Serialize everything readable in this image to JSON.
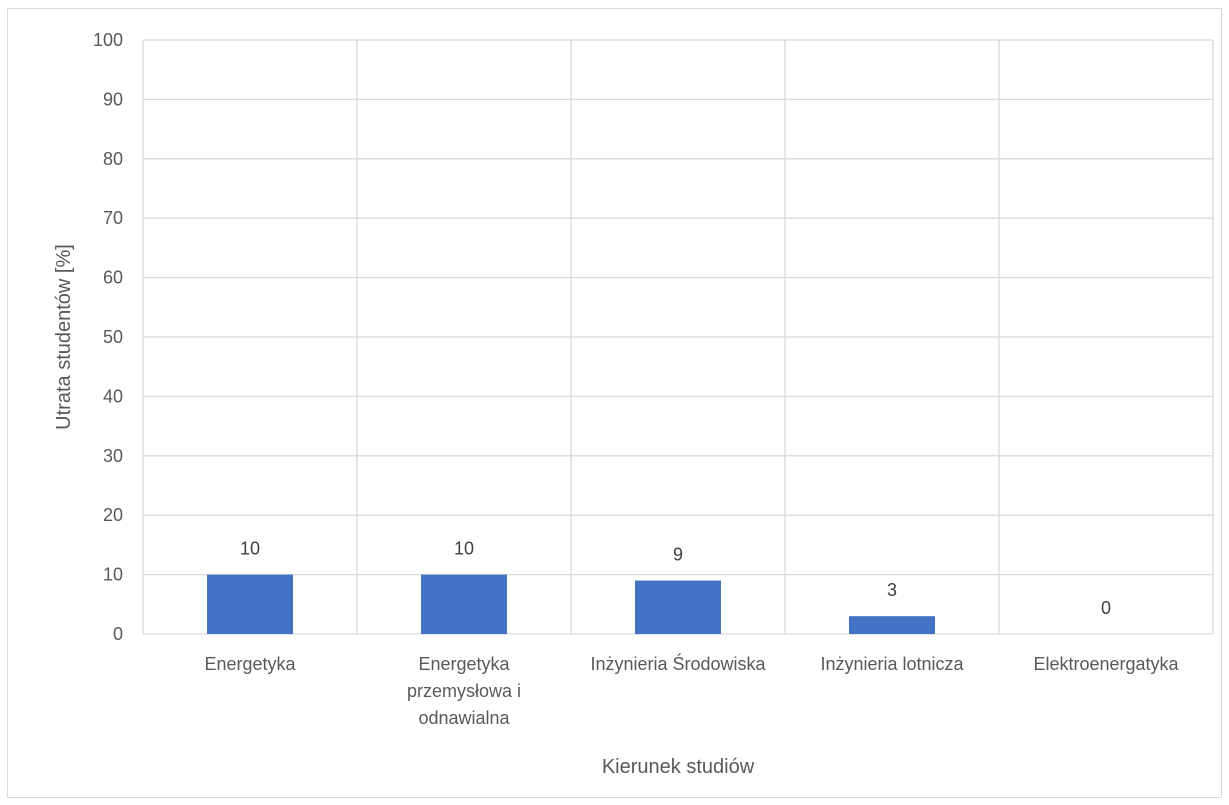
{
  "chart_data": {
    "type": "bar",
    "categories": [
      [
        "Energetyka"
      ],
      [
        "Energetyka",
        "przemysłowa i",
        "odnawialna"
      ],
      [
        "Inżynieria Środowiska"
      ],
      [
        "Inżynieria lotnicza"
      ],
      [
        "Elektroenergatyka"
      ]
    ],
    "values": [
      10,
      10,
      9,
      3,
      0
    ],
    "data_labels": [
      "10",
      "10",
      "9",
      "3",
      "0"
    ],
    "yticks": [
      "0",
      "10",
      "20",
      "30",
      "40",
      "50",
      "60",
      "70",
      "80",
      "90",
      "100"
    ],
    "ylim": [
      0,
      100
    ],
    "xlabel": "Kierunek studiów",
    "ylabel": "Utrata studentów [%]",
    "grid": "both",
    "legend": "none",
    "colors": {
      "bar": "#4472c4",
      "grid": "#d9d9d9"
    }
  }
}
